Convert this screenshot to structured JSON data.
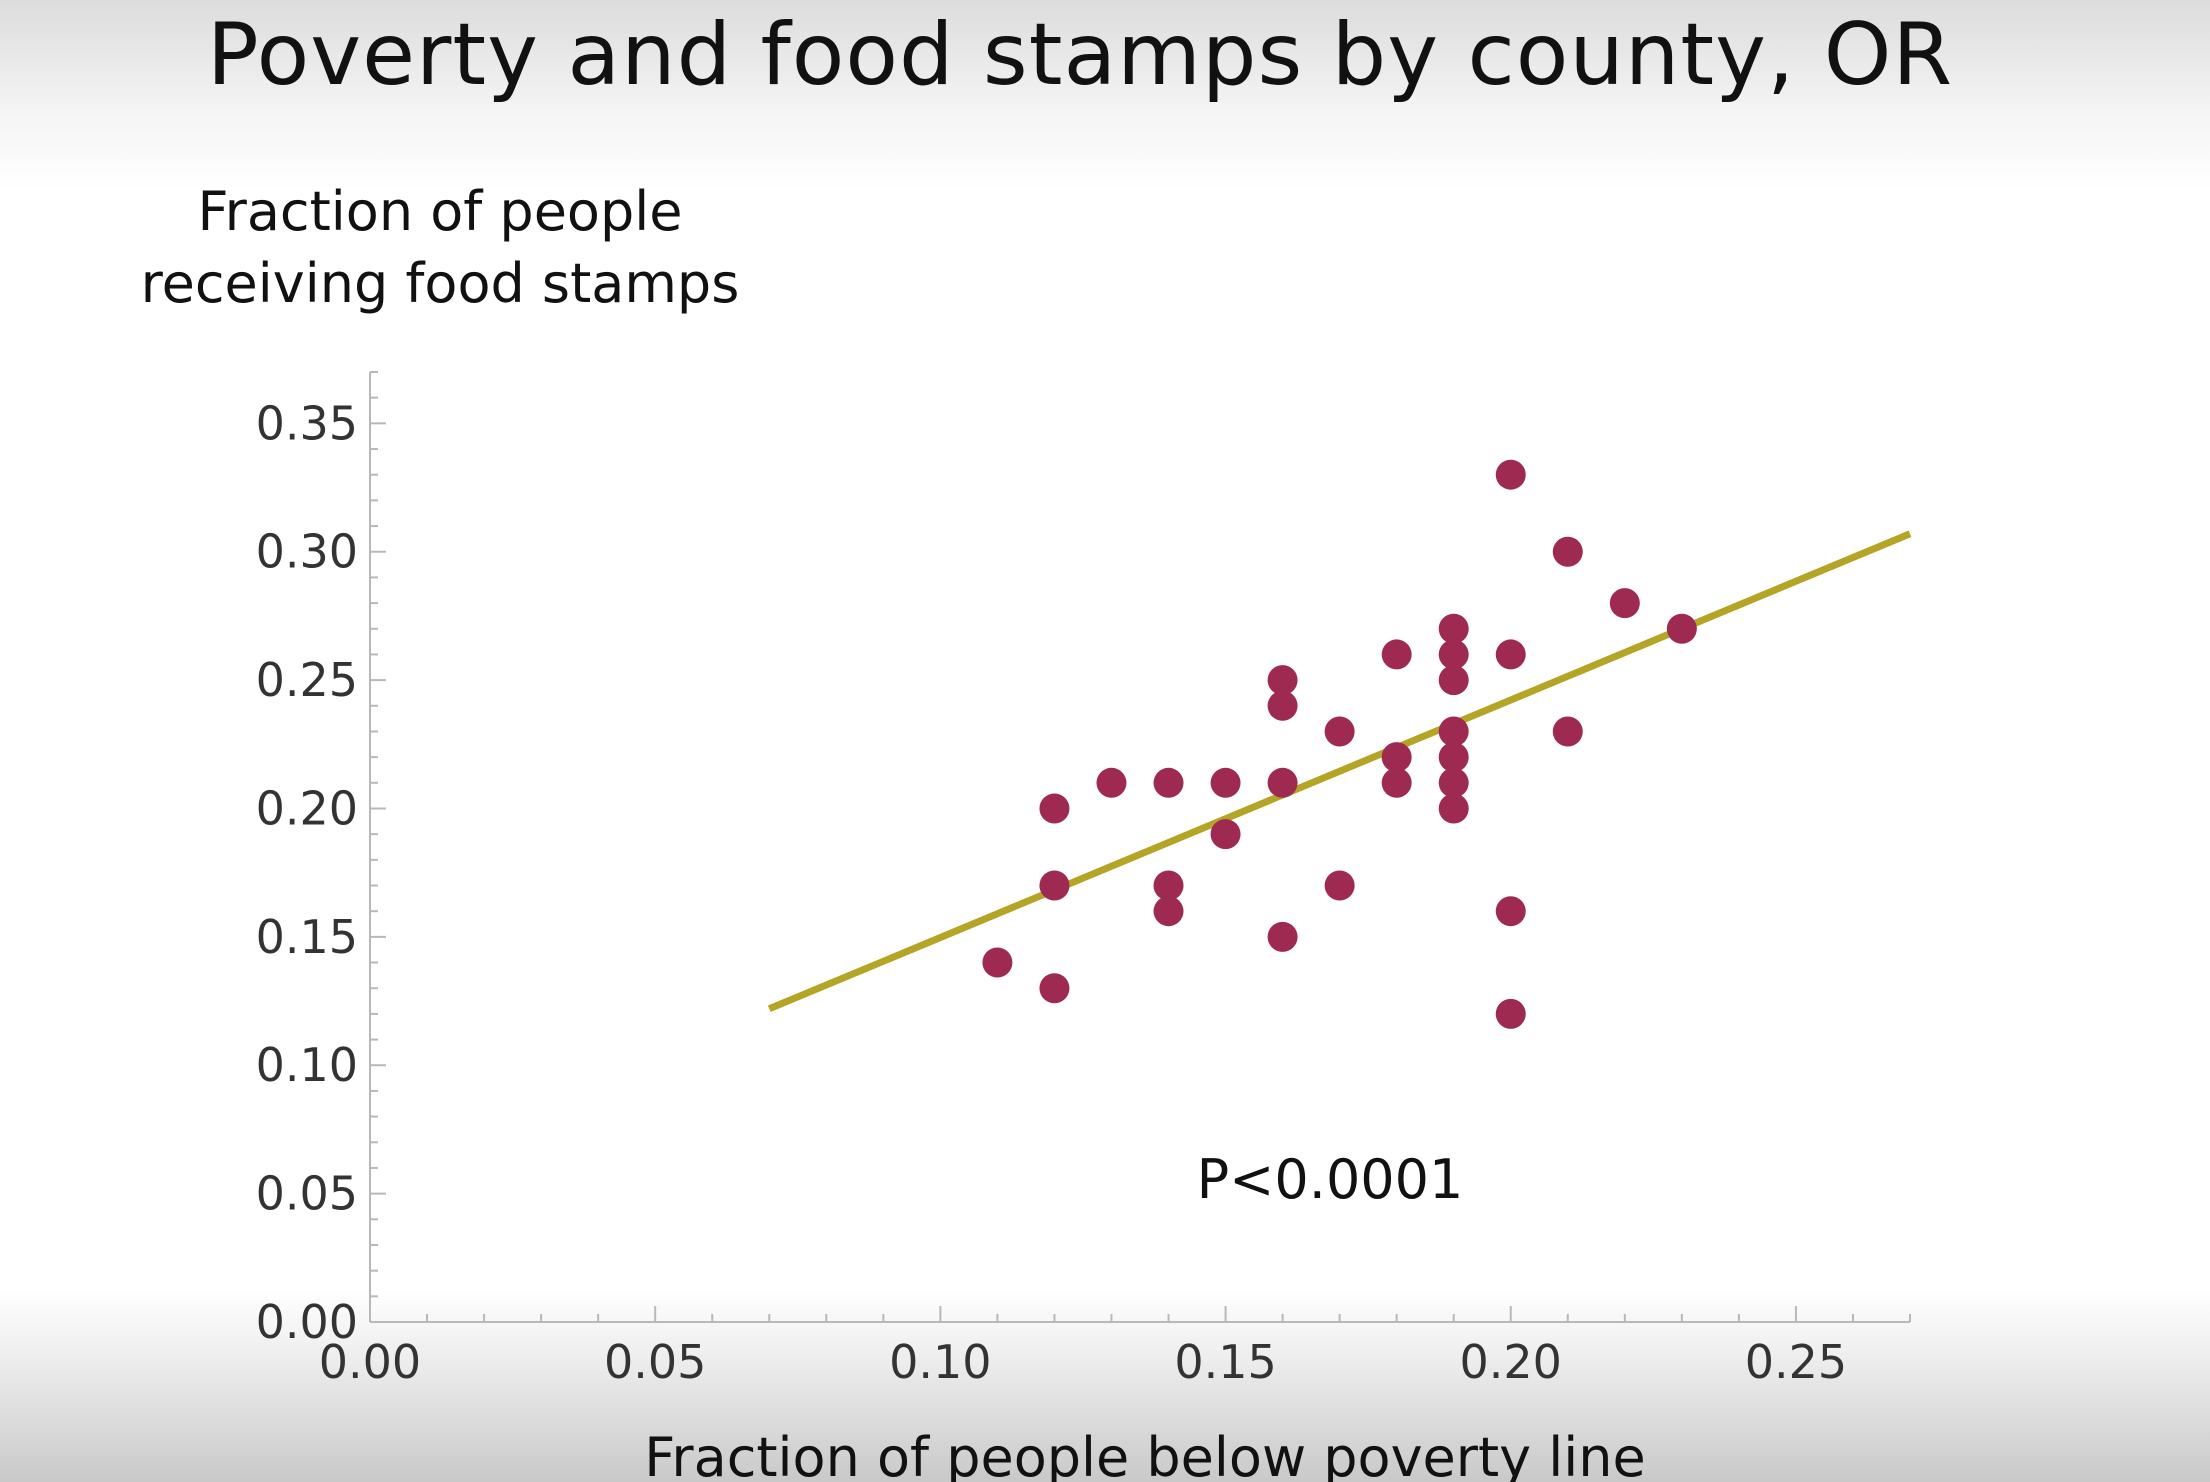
{
  "slide": {
    "title": "Poverty and food stamps by county, OR"
  },
  "chart_data": {
    "type": "scatter",
    "title": "Poverty and food stamps by county, OR",
    "ylabel_lines": [
      "Fraction of people",
      "receiving food stamps"
    ],
    "xlabel": "Fraction of people below poverty line",
    "annotation": "P<0.0001",
    "xlim": [
      0,
      0.27
    ],
    "ylim": [
      0,
      0.37
    ],
    "x_ticks": [
      "0.00",
      "0.05",
      "0.10",
      "0.15",
      "0.20",
      "0.25"
    ],
    "y_ticks": [
      "0.00",
      "0.05",
      "0.10",
      "0.15",
      "0.20",
      "0.25",
      "0.30",
      "0.35"
    ],
    "grid": false,
    "point_color": "#9e2a52",
    "fit_color": "#b5a526",
    "points": [
      {
        "x": 0.11,
        "y": 0.14
      },
      {
        "x": 0.12,
        "y": 0.13
      },
      {
        "x": 0.12,
        "y": 0.17
      },
      {
        "x": 0.12,
        "y": 0.2
      },
      {
        "x": 0.13,
        "y": 0.21
      },
      {
        "x": 0.14,
        "y": 0.16
      },
      {
        "x": 0.14,
        "y": 0.17
      },
      {
        "x": 0.14,
        "y": 0.21
      },
      {
        "x": 0.15,
        "y": 0.19
      },
      {
        "x": 0.15,
        "y": 0.21
      },
      {
        "x": 0.16,
        "y": 0.15
      },
      {
        "x": 0.16,
        "y": 0.21
      },
      {
        "x": 0.16,
        "y": 0.24
      },
      {
        "x": 0.16,
        "y": 0.25
      },
      {
        "x": 0.17,
        "y": 0.17
      },
      {
        "x": 0.17,
        "y": 0.23
      },
      {
        "x": 0.18,
        "y": 0.21
      },
      {
        "x": 0.18,
        "y": 0.22
      },
      {
        "x": 0.18,
        "y": 0.26
      },
      {
        "x": 0.19,
        "y": 0.2
      },
      {
        "x": 0.19,
        "y": 0.21
      },
      {
        "x": 0.19,
        "y": 0.22
      },
      {
        "x": 0.19,
        "y": 0.23
      },
      {
        "x": 0.19,
        "y": 0.25
      },
      {
        "x": 0.19,
        "y": 0.26
      },
      {
        "x": 0.19,
        "y": 0.27
      },
      {
        "x": 0.2,
        "y": 0.12
      },
      {
        "x": 0.2,
        "y": 0.16
      },
      {
        "x": 0.2,
        "y": 0.26
      },
      {
        "x": 0.2,
        "y": 0.33
      },
      {
        "x": 0.21,
        "y": 0.23
      },
      {
        "x": 0.21,
        "y": 0.3
      },
      {
        "x": 0.22,
        "y": 0.28
      },
      {
        "x": 0.23,
        "y": 0.27
      }
    ],
    "fit_line": {
      "x": [
        0.07,
        0.27
      ],
      "y": [
        0.122,
        0.307
      ]
    }
  }
}
